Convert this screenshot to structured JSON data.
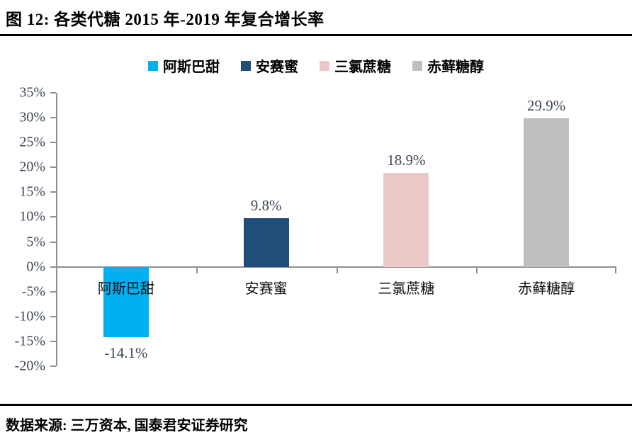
{
  "figure": {
    "title": "图 12:  各类代糖 2015 年-2019 年复合增长率",
    "source": "数据来源: 三万资本, 国泰君安证券研究"
  },
  "chart_data": {
    "type": "bar",
    "title": "各类代糖 2015 年-2019 年复合增长率",
    "categories": [
      "阿斯巴甜",
      "安赛蜜",
      "三氯蔗糖",
      "赤藓糖醇"
    ],
    "values": [
      -14.1,
      9.8,
      18.9,
      29.9
    ],
    "value_labels": [
      "-14.1%",
      "9.8%",
      "18.9%",
      "29.9%"
    ],
    "bar_colors": [
      "#00B0F0",
      "#1F4E79",
      "#ECC9C9",
      "#BFBFBF"
    ],
    "legend": {
      "position": "top",
      "entries": [
        {
          "label": "阿斯巴甜",
          "color": "#00B0F0"
        },
        {
          "label": "安赛蜜",
          "color": "#1F4E79"
        },
        {
          "label": "三氯蔗糖",
          "color": "#ECC9C9"
        },
        {
          "label": "赤藓糖醇",
          "color": "#BFBFBF"
        }
      ]
    },
    "y_axis": {
      "min": -20,
      "max": 35,
      "step": 5,
      "tick_labels": [
        "35%",
        "30%",
        "25%",
        "20%",
        "15%",
        "10%",
        "5%",
        "0%",
        "-5%",
        "-10%",
        "-15%",
        "-20%"
      ]
    },
    "grid": false
  },
  "colors": {
    "axis_line": "#909090",
    "tick_label_text": "#3D4659",
    "data_label_text": "#3D4659",
    "category_label_text": "#111111",
    "rule": "#000000"
  }
}
